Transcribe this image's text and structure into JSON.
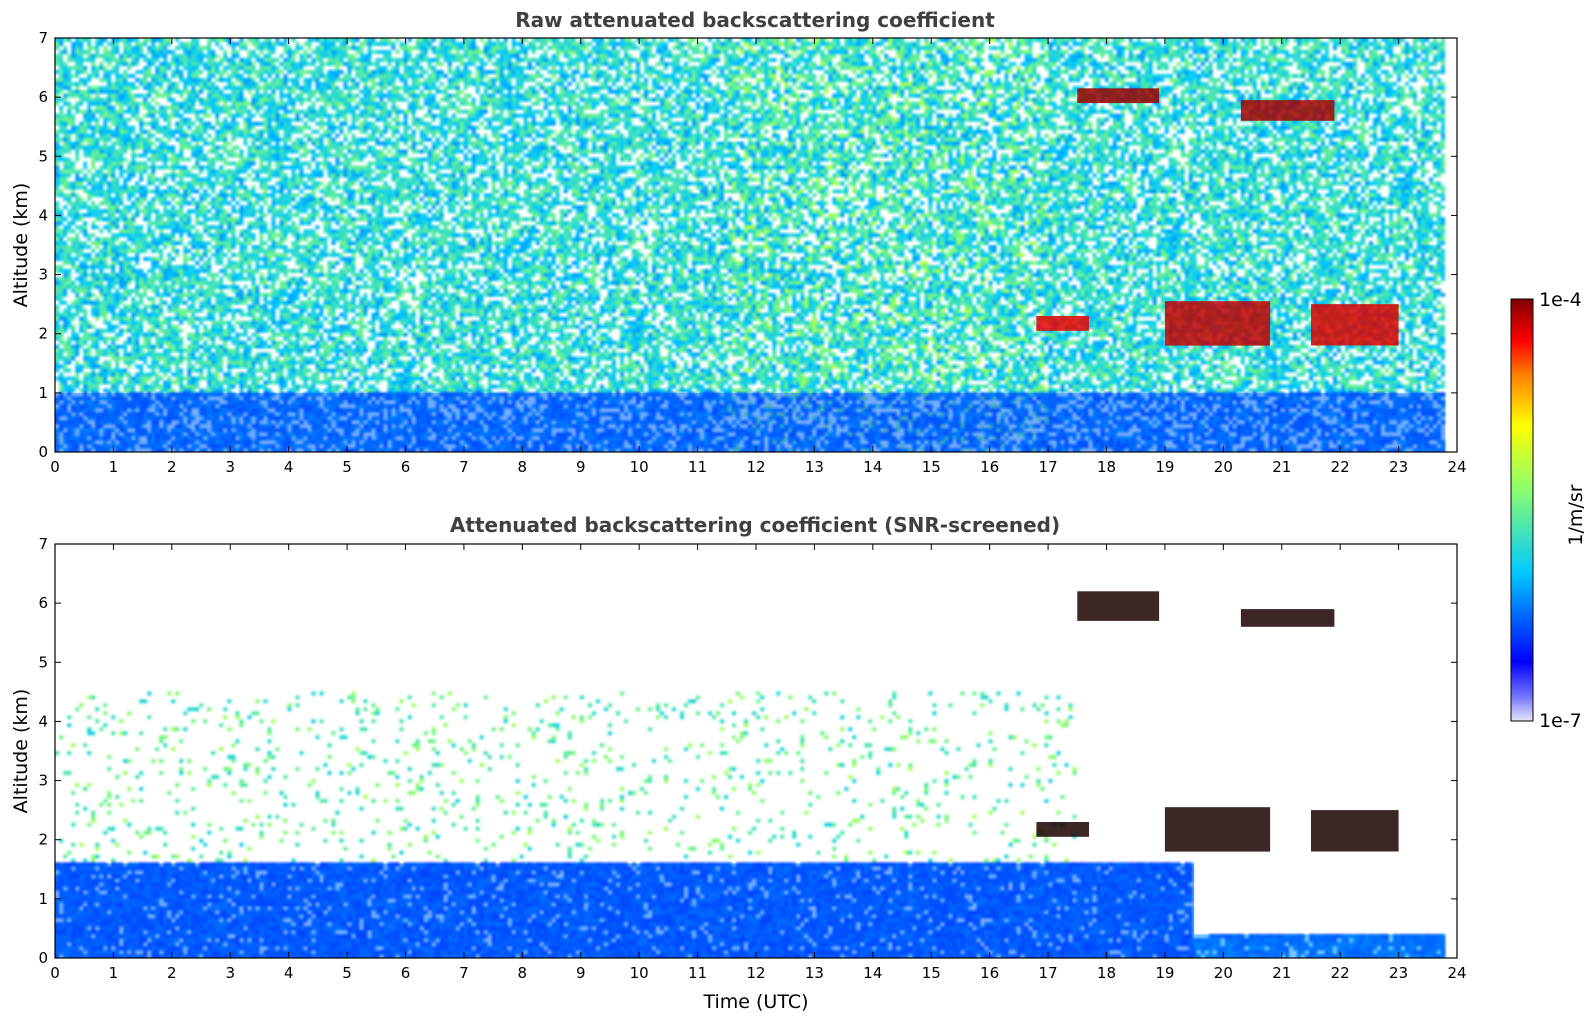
{
  "chart_data": [
    {
      "type": "heatmap",
      "title": "Raw attenuated backscattering coefficient",
      "xlabel": "",
      "ylabel": "Altitude (km)",
      "xlim": [
        0,
        24
      ],
      "ylim": [
        0,
        7
      ],
      "xticks": [
        "0",
        "1",
        "2",
        "3",
        "4",
        "5",
        "6",
        "7",
        "8",
        "9",
        "10",
        "11",
        "12",
        "13",
        "14",
        "15",
        "16",
        "17",
        "18",
        "19",
        "20",
        "21",
        "22",
        "23",
        "24"
      ],
      "yticks": [
        "0",
        "1",
        "2",
        "3",
        "4",
        "5",
        "6",
        "7"
      ],
      "features": [
        {
          "type": "boundary-layer",
          "t": [
            0,
            23.8
          ],
          "alt": [
            0,
            1.0
          ],
          "level": 0.25
        },
        {
          "type": "cloud",
          "t": [
            17.5,
            18.9
          ],
          "alt": [
            5.9,
            6.15
          ],
          "level": 0.98
        },
        {
          "type": "cloud",
          "t": [
            20.3,
            21.9
          ],
          "alt": [
            5.6,
            5.95
          ],
          "level": 0.97
        },
        {
          "type": "cloud",
          "t": [
            16.8,
            17.7
          ],
          "alt": [
            2.05,
            2.3
          ],
          "level": 0.92
        },
        {
          "type": "cloud",
          "t": [
            19.0,
            20.8
          ],
          "alt": [
            1.8,
            2.55
          ],
          "level": 0.95
        },
        {
          "type": "cloud",
          "t": [
            21.5,
            23.0
          ],
          "alt": [
            1.8,
            2.5
          ],
          "level": 0.93
        }
      ]
    },
    {
      "type": "heatmap",
      "title": "Attenuated backscattering coefficient (SNR-screened)",
      "xlabel": "Time (UTC)",
      "ylabel": "Altitude (km)",
      "xlim": [
        0,
        24
      ],
      "ylim": [
        0,
        7
      ],
      "xticks": [
        "0",
        "1",
        "2",
        "3",
        "4",
        "5",
        "6",
        "7",
        "8",
        "9",
        "10",
        "11",
        "12",
        "13",
        "14",
        "15",
        "16",
        "17",
        "18",
        "19",
        "20",
        "21",
        "22",
        "23",
        "24"
      ],
      "yticks": [
        "0",
        "1",
        "2",
        "3",
        "4",
        "5",
        "6",
        "7"
      ],
      "features": [
        {
          "type": "boundary-layer",
          "t": [
            0,
            19.5
          ],
          "alt": [
            0,
            1.6
          ],
          "level": 0.25
        },
        {
          "type": "boundary-layer",
          "t": [
            19.5,
            23.8
          ],
          "alt": [
            0,
            0.4
          ],
          "level": 0.3
        },
        {
          "type": "cloud",
          "t": [
            17.5,
            18.9
          ],
          "alt": [
            5.7,
            6.2
          ],
          "level": 0.99
        },
        {
          "type": "cloud",
          "t": [
            20.3,
            21.9
          ],
          "alt": [
            5.6,
            5.9
          ],
          "level": 0.99
        },
        {
          "type": "cloud",
          "t": [
            16.8,
            17.7
          ],
          "alt": [
            2.05,
            2.3
          ],
          "level": 0.99
        },
        {
          "type": "cloud",
          "t": [
            19.0,
            20.8
          ],
          "alt": [
            1.8,
            2.55
          ],
          "level": 0.99
        },
        {
          "type": "cloud",
          "t": [
            21.5,
            23.0
          ],
          "alt": [
            1.8,
            2.5
          ],
          "level": 0.99
        }
      ]
    }
  ],
  "colorbar": {
    "label": "1/m/sr",
    "max_label": "1e-4",
    "min_label": "1e-7",
    "colormap": [
      "#e6e6f7",
      "#0000ff",
      "#00c8ff",
      "#8cff6e",
      "#ffff00",
      "#ff8000",
      "#ff0000",
      "#800000"
    ]
  }
}
